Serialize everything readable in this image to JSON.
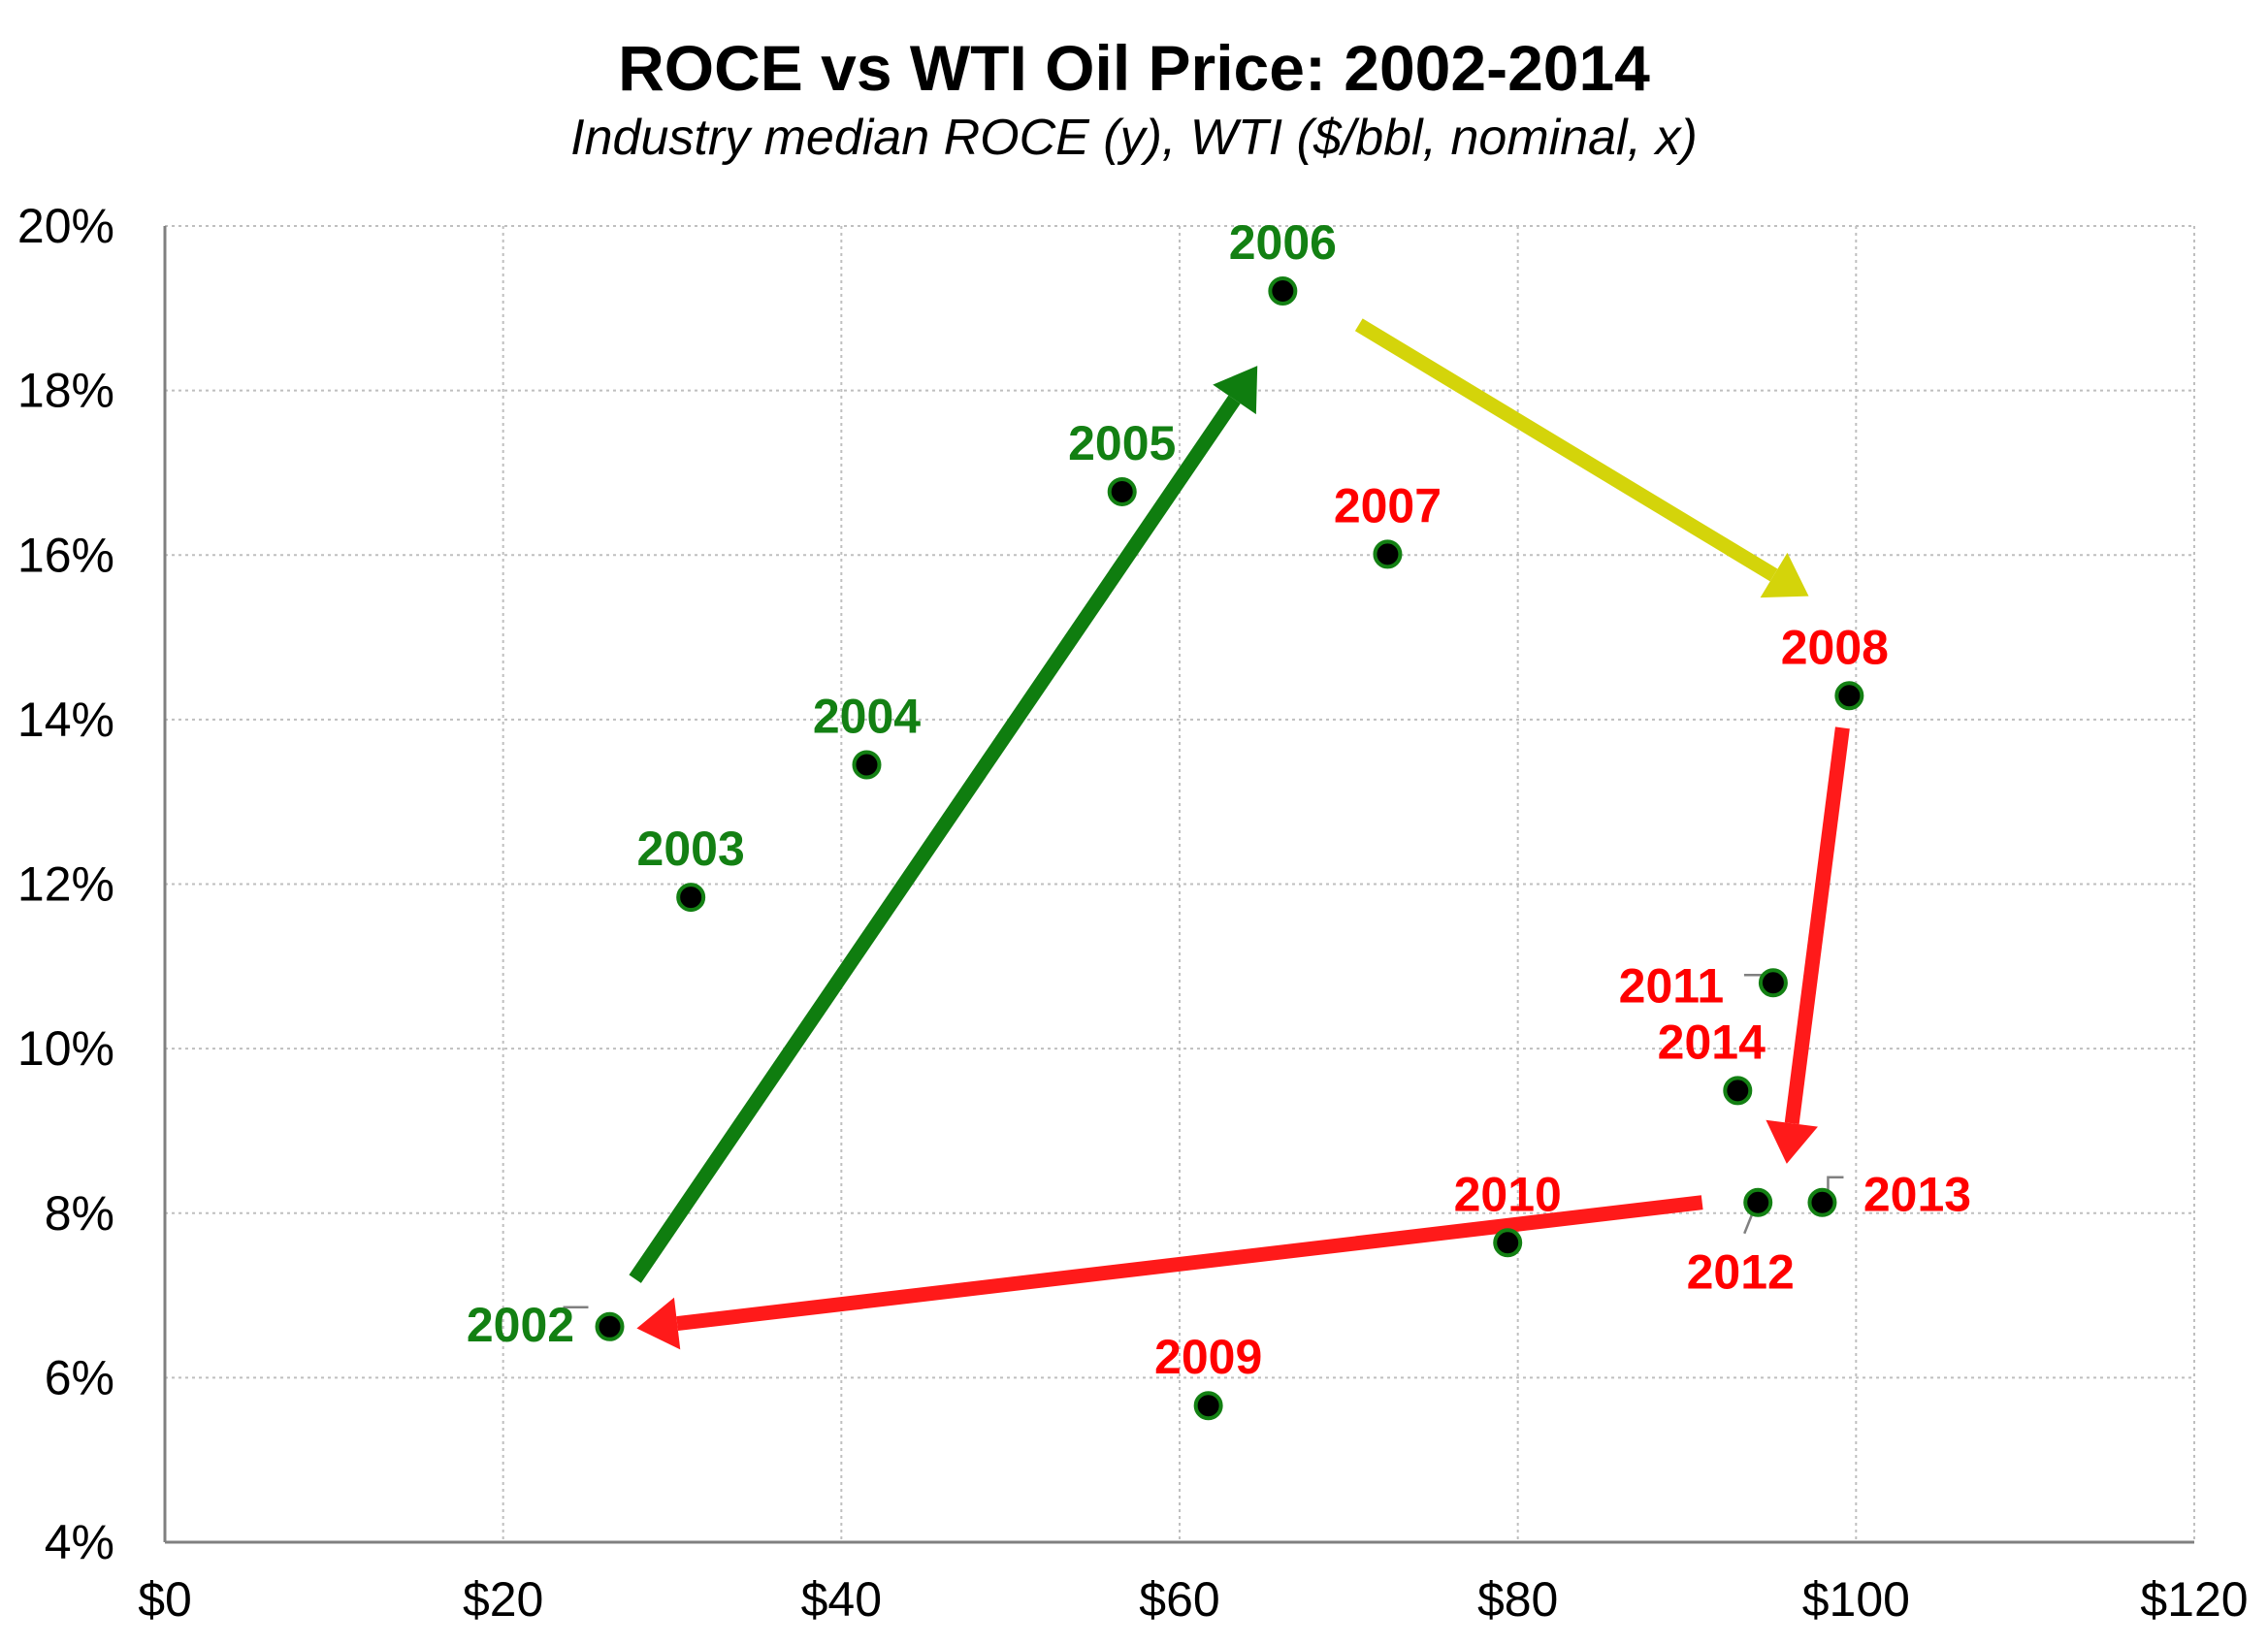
{
  "chart_data": {
    "type": "scatter",
    "title": "ROCE vs WTI Oil Price: 2002-2014",
    "subtitle": "Industry median ROCE (y), WTI ($/bbl, nominal, x)",
    "xlabel": "",
    "ylabel": "",
    "xlim": [
      0,
      120
    ],
    "ylim": [
      4,
      20
    ],
    "x_ticks": [
      0,
      20,
      40,
      60,
      80,
      100,
      120
    ],
    "x_tick_labels": [
      "$0",
      "$20",
      "$40",
      "$60",
      "$80",
      "$100",
      "$120"
    ],
    "y_ticks": [
      4,
      6,
      8,
      10,
      12,
      14,
      16,
      18,
      20
    ],
    "y_tick_labels": [
      "4%",
      "6%",
      "8%",
      "10%",
      "12%",
      "14%",
      "16%",
      "18%",
      "20%"
    ],
    "grid": true,
    "legend": "none",
    "colors": {
      "green_label": "#138013",
      "red_label": "#ff0000",
      "marker_fill": "#000000",
      "marker_edge": "#138013",
      "arrow_green": "#0f7d0f",
      "arrow_yellow": "#d4d40a",
      "arrow_red": "#ff1a1a",
      "grid": "#bfbfbf",
      "axis": "#808080"
    },
    "points": [
      {
        "label": "2002",
        "x": 26.3,
        "y": 6.62,
        "color": "green"
      },
      {
        "label": "2003",
        "x": 31.1,
        "y": 11.84,
        "color": "green"
      },
      {
        "label": "2004",
        "x": 41.5,
        "y": 13.45,
        "color": "green"
      },
      {
        "label": "2005",
        "x": 56.6,
        "y": 16.77,
        "color": "green"
      },
      {
        "label": "2006",
        "x": 66.1,
        "y": 19.21,
        "color": "green"
      },
      {
        "label": "2007",
        "x": 72.3,
        "y": 16.01,
        "color": "red"
      },
      {
        "label": "2008",
        "x": 99.6,
        "y": 14.29,
        "color": "red"
      },
      {
        "label": "2009",
        "x": 61.7,
        "y": 5.66,
        "color": "red"
      },
      {
        "label": "2010",
        "x": 79.4,
        "y": 7.64,
        "color": "red"
      },
      {
        "label": "2011",
        "x": 95.1,
        "y": 10.8,
        "color": "red"
      },
      {
        "label": "2012",
        "x": 94.2,
        "y": 8.13,
        "color": "red"
      },
      {
        "label": "2013",
        "x": 98.0,
        "y": 8.13,
        "color": "red"
      },
      {
        "label": "2014",
        "x": 93.0,
        "y": 9.49,
        "color": "red"
      }
    ],
    "arrows": [
      {
        "from": [
          27.8,
          7.2
        ],
        "to": [
          64.6,
          18.3
        ],
        "color": "green"
      },
      {
        "from": [
          70.6,
          18.8
        ],
        "to": [
          97.2,
          15.5
        ],
        "color": "yellow"
      },
      {
        "from": [
          99.2,
          13.9
        ],
        "to": [
          95.9,
          8.6
        ],
        "color": "red"
      },
      {
        "from": [
          90.9,
          8.13
        ],
        "to": [
          27.9,
          6.6
        ],
        "color": "red"
      }
    ]
  }
}
